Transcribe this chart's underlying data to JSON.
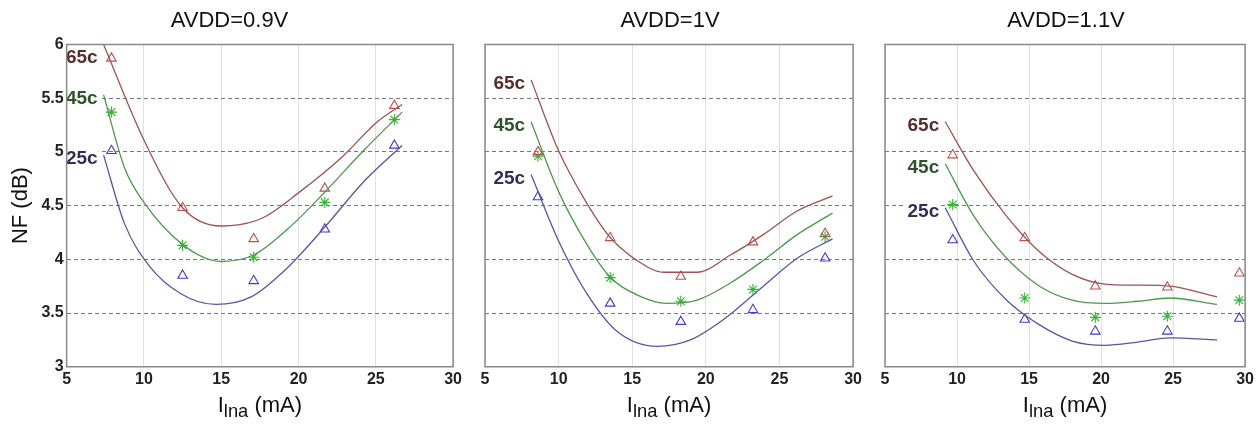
{
  "chart_data": [
    {
      "type": "line",
      "title": "AVDD=0.9V",
      "xlabel": "I$_{lna}$ (mA)",
      "ylabel": "NF (dB)",
      "xlim": [
        5,
        30
      ],
      "xticks": [
        5,
        10,
        15,
        20,
        25,
        30
      ],
      "ylim": [
        3,
        6
      ],
      "yticks": [
        3,
        3.5,
        4,
        4.5,
        5,
        5.5,
        6
      ],
      "grid": true,
      "series": [
        {
          "name": "65c",
          "type": "line",
          "color": "#a0524f",
          "marker": "none",
          "x": [
            7.39,
            10,
            12.5,
            15,
            17.6,
            20.1,
            22.8,
            25.1,
            26.7
          ],
          "values": [
            6.0,
            5.11,
            4.48,
            4.31,
            4.38,
            4.63,
            4.95,
            5.28,
            5.44
          ]
        },
        {
          "name": "45c",
          "type": "line",
          "color": "#4b9a4b",
          "marker": "none",
          "x": [
            7.39,
            8.75,
            10,
            12.57,
            15,
            17.09,
            19.66,
            21.66,
            24.2,
            26.7
          ],
          "values": [
            5.53,
            4.85,
            4.53,
            4.13,
            3.98,
            4.04,
            4.33,
            4.62,
            5.01,
            5.37
          ]
        },
        {
          "name": "25c",
          "type": "line",
          "color": "#5555aa",
          "marker": "none",
          "x": [
            7.39,
            8.75,
            10.34,
            12.39,
            14.66,
            16.93,
            19.2,
            21.7,
            24.2,
            26.7
          ],
          "values": [
            4.97,
            4.33,
            3.94,
            3.68,
            3.58,
            3.65,
            3.91,
            4.3,
            4.72,
            5.06
          ]
        },
        {
          "type": "scatter",
          "color": "#c0504d",
          "marker": "triangle",
          "x": [
            7.9,
            12.5,
            17.1,
            21.7,
            26.2
          ],
          "values": [
            5.87,
            4.48,
            4.19,
            4.66,
            5.43
          ]
        },
        {
          "type": "scatter",
          "color": "#2db82d",
          "marker": "cross",
          "x": [
            7.9,
            12.5,
            17.1,
            21.7,
            26.2
          ],
          "values": [
            5.37,
            4.13,
            4.02,
            4.53,
            5.3
          ]
        },
        {
          "type": "scatter",
          "color": "#3b3bd0",
          "marker": "triangle",
          "x": [
            7.9,
            12.5,
            17.1,
            21.7,
            26.2
          ],
          "values": [
            5.01,
            3.85,
            3.8,
            4.28,
            5.06
          ]
        }
      ]
    },
    {
      "type": "line",
      "title": "AVDD=1V",
      "xlabel": "I$_{lna}$ (mA)",
      "xlim": [
        5,
        30
      ],
      "xticks": [
        5,
        10,
        15,
        20,
        25,
        30
      ],
      "ylim": [
        3,
        6
      ],
      "yticks": [
        3,
        3.5,
        4,
        4.5,
        5,
        5.5,
        6
      ],
      "grid": true,
      "tick_labels": "x",
      "series": [
        {
          "name": "65c",
          "type": "line",
          "color": "#a0524f",
          "marker": "none",
          "x": [
            8.13,
            10,
            11.92,
            13.46,
            15.32,
            17.13,
            19.4,
            21.67,
            23.9,
            26.2,
            28.6
          ],
          "values": [
            5.67,
            5.01,
            4.52,
            4.21,
            3.99,
            3.88,
            3.88,
            4.04,
            4.23,
            4.45,
            4.59
          ]
        },
        {
          "name": "45c",
          "type": "line",
          "color": "#4b9a4b",
          "marker": "none",
          "x": [
            8.13,
            10,
            11.92,
            13.46,
            15.32,
            17.36,
            19.4,
            21.67,
            23.9,
            26.2,
            28.6
          ],
          "values": [
            5.28,
            4.63,
            4.14,
            3.84,
            3.67,
            3.59,
            3.62,
            3.78,
            3.99,
            4.23,
            4.43
          ]
        },
        {
          "name": "25c",
          "type": "line",
          "color": "#5555aa",
          "marker": "none",
          "x": [
            8.13,
            10,
            11.92,
            13.96,
            16.68,
            18.95,
            21.2,
            23.9,
            26.2,
            28.6
          ],
          "values": [
            4.79,
            4.17,
            3.68,
            3.33,
            3.19,
            3.25,
            3.44,
            3.75,
            4.01,
            4.19
          ]
        },
        {
          "type": "scatter",
          "color": "#c0504d",
          "marker": "triangle",
          "x": [
            8.6,
            13.5,
            18.3,
            23.2,
            28.1
          ],
          "values": [
            5.0,
            4.2,
            3.84,
            4.16,
            4.24
          ]
        },
        {
          "type": "scatter",
          "color": "#2db82d",
          "marker": "cross",
          "x": [
            8.6,
            13.5,
            18.3,
            23.2,
            28.1
          ],
          "values": [
            4.96,
            3.83,
            3.61,
            3.72,
            4.21
          ]
        },
        {
          "type": "scatter",
          "color": "#3b3bd0",
          "marker": "triangle",
          "x": [
            8.6,
            13.5,
            18.3,
            23.2,
            28.1
          ],
          "values": [
            4.58,
            3.59,
            3.42,
            3.53,
            4.01
          ]
        }
      ]
    },
    {
      "type": "line",
      "title": "AVDD=1.1V",
      "xlabel": "I$_{lna}$ (mA)",
      "xlim": [
        5,
        30
      ],
      "xticks": [
        5,
        10,
        15,
        20,
        25,
        30
      ],
      "ylim": [
        3,
        6
      ],
      "yticks": [
        3,
        3.5,
        4,
        4.5,
        5,
        5.5,
        6
      ],
      "grid": true,
      "tick_labels": "x",
      "series": [
        {
          "name": "65c",
          "type": "line",
          "color": "#a0524f",
          "marker": "none",
          "x": [
            9.18,
            11.18,
            13.45,
            15.73,
            18.0,
            20.27,
            22.55,
            24.8,
            28.05
          ],
          "values": [
            5.28,
            4.82,
            4.4,
            4.07,
            3.86,
            3.77,
            3.76,
            3.75,
            3.65
          ]
        },
        {
          "name": "45c",
          "type": "line",
          "color": "#4b9a4b",
          "marker": "none",
          "x": [
            9.18,
            11.18,
            13.45,
            15.73,
            18.0,
            20.27,
            22.55,
            24.8,
            28.05
          ],
          "values": [
            4.89,
            4.4,
            4.01,
            3.75,
            3.62,
            3.59,
            3.61,
            3.64,
            3.58
          ]
        },
        {
          "name": "25c",
          "type": "line",
          "color": "#5555aa",
          "marker": "none",
          "x": [
            9.18,
            11.18,
            13.45,
            15.73,
            18.0,
            20.27,
            22.55,
            24.8,
            28.05
          ],
          "values": [
            4.48,
            3.98,
            3.62,
            3.39,
            3.24,
            3.2,
            3.23,
            3.27,
            3.25
          ]
        },
        {
          "type": "scatter",
          "color": "#c0504d",
          "marker": "triangle",
          "x": [
            9.7,
            14.7,
            19.6,
            24.6,
            29.6
          ],
          "values": [
            4.97,
            4.2,
            3.75,
            3.74,
            3.87
          ]
        },
        {
          "type": "scatter",
          "color": "#2db82d",
          "marker": "cross",
          "x": [
            9.7,
            14.7,
            19.6,
            24.6,
            29.6
          ],
          "values": [
            4.51,
            3.64,
            3.46,
            3.47,
            3.62
          ]
        },
        {
          "type": "scatter",
          "color": "#3b3bd0",
          "marker": "triangle",
          "x": [
            9.7,
            14.7,
            19.6,
            24.6,
            29.6
          ],
          "values": [
            4.18,
            3.44,
            3.33,
            3.33,
            3.45
          ]
        }
      ]
    }
  ]
}
